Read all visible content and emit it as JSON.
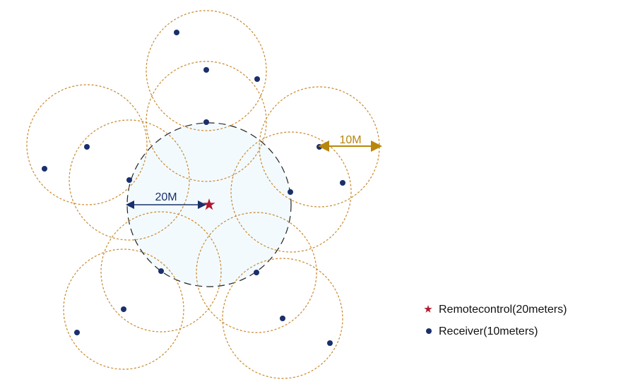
{
  "labels": {
    "remote_range": "20M",
    "receiver_range": "10M"
  },
  "legend": {
    "remote": "Remotecontrol(20meters)",
    "receiver": "Receiver(10meters)"
  }
}
